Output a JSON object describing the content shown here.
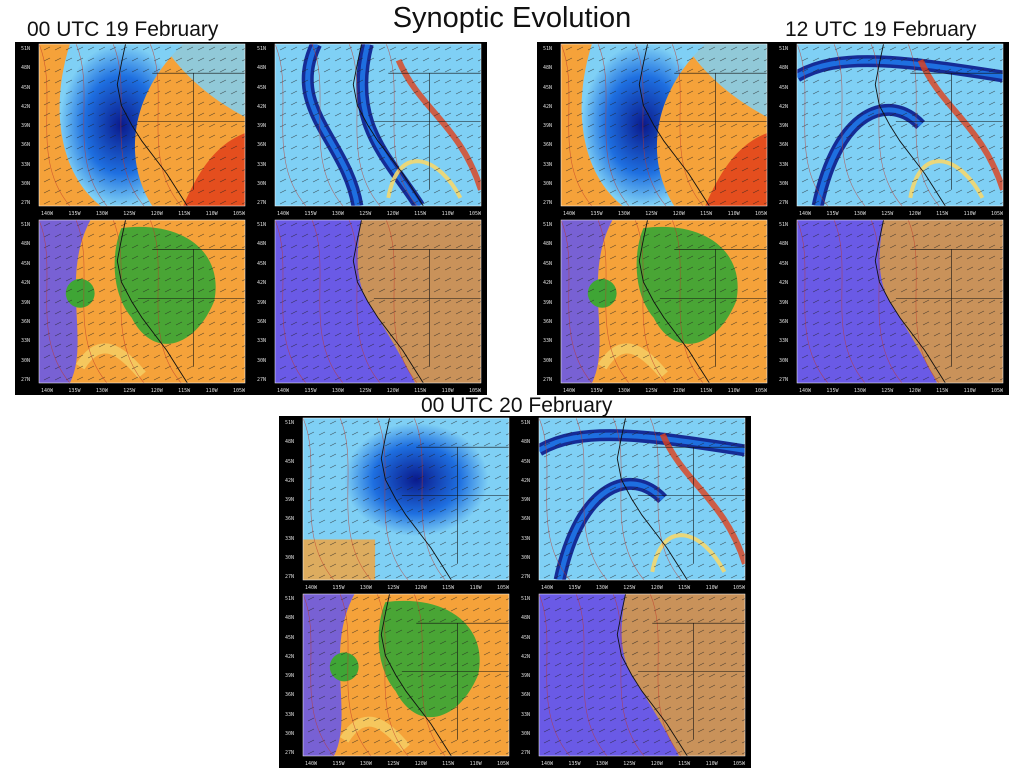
{
  "title": "Synoptic Evolution",
  "times": [
    {
      "label": "00 UTC 19 February"
    },
    {
      "label": "12 UTC 19 February"
    },
    {
      "label": "00 UTC 20 February"
    }
  ],
  "lat_ticks": [
    "51N",
    "48N",
    "45N",
    "42N",
    "39N",
    "36N",
    "33N",
    "30N",
    "27N"
  ],
  "lon_ticks": [
    "140W",
    "135W",
    "130W",
    "125W",
    "120W",
    "115W",
    "110W",
    "105W"
  ],
  "product_types": [
    "trop-pressure",
    "500mb-height-omega",
    "rh-700mb",
    "slp-precip"
  ],
  "colors": {
    "background": "#000000",
    "deep_blue": "#0a1a8c",
    "blue": "#1e6fe0",
    "light_blue": "#7fd0f5",
    "orange": "#f5a23a",
    "red_orange": "#e0401a",
    "yellow": "#f5d76e",
    "green": "#3fa535",
    "violet": "#6a5ae6",
    "tan": "#c9925a"
  }
}
